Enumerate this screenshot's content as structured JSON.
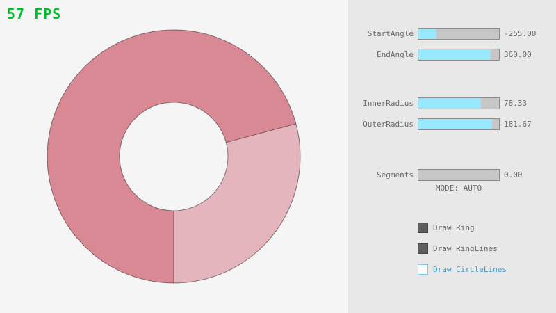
{
  "fps": "57 FPS",
  "colors": {
    "canvas_bg": "#f5f5f5",
    "panel_bg": "#e8e8e8",
    "divider": "#d2d2d2",
    "ring_dark": "#d98994",
    "ring_light": "#e4b5bc",
    "ring_line": "rgba(0,0,0,0.45)",
    "fps_green": "#00be30",
    "slider_track": "#c6c6c6",
    "slider_border": "#8b8b8b",
    "slider_fill": "#97e8ff",
    "text": "#6a6a6a",
    "checkbox_checked": "#5e5e5e",
    "checkbox_checked_border": "#444444",
    "checkbox_unchecked_border": "#79c7e8",
    "accent_text": "#3b9ed0"
  },
  "sliders": [
    {
      "label": "StartAngle",
      "value": "-255.00",
      "fill_pct": 22
    },
    {
      "label": "EndAngle",
      "value": "360.00",
      "fill_pct": 90
    },
    {
      "label": "InnerRadius",
      "value": "78.33",
      "fill_pct": 78
    },
    {
      "label": "OuterRadius",
      "value": "181.67",
      "fill_pct": 91
    },
    {
      "label": "Segments",
      "value": "0.00",
      "fill_pct": 0
    }
  ],
  "mode_text": "MODE: AUTO",
  "checkboxes": [
    {
      "label": "Draw Ring",
      "checked": true
    },
    {
      "label": "Draw RingLines",
      "checked": true
    },
    {
      "label": "Draw CircleLines",
      "checked": false
    }
  ]
}
